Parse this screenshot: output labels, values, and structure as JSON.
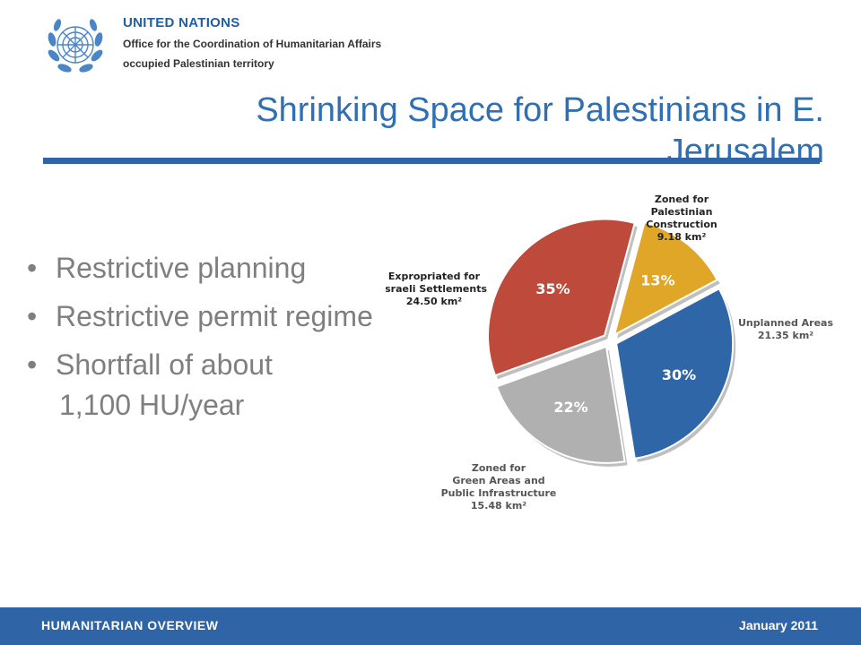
{
  "header": {
    "org_name": "UNITED NATIONS",
    "office": "Office for the Coordination of Humanitarian Affairs",
    "territory": "occupied Palestinian territory"
  },
  "slide": {
    "title": "Shrinking Space for Palestinians in E. Jerusalem",
    "bullets": [
      "Restrictive planning",
      "Restrictive permit regime",
      "Shortfall of about"
    ],
    "bullet_continuation": "1,100 HU/year"
  },
  "chart_data": {
    "type": "pie",
    "slices": [
      {
        "label_lines": [
          "Zoned for",
          "Palestinian",
          "Construction",
          "9.18 km²"
        ],
        "percent_label": "13%",
        "value": 9.18,
        "color": "#e0a628"
      },
      {
        "label_lines": [
          "Unplanned Areas",
          "21.35 km²"
        ],
        "percent_label": "30%",
        "value": 21.35,
        "color": "#2e66a8"
      },
      {
        "label_lines": [
          "Zoned for",
          "Green Areas and",
          "Public Infrastructure",
          "15.48 km²"
        ],
        "percent_label": "22%",
        "value": 15.48,
        "color": "#b0b0b0"
      },
      {
        "label_lines": [
          "Expropriated for",
          "Israeli Settlements",
          "24.50 km²"
        ],
        "percent_label": "35%",
        "value": 24.5,
        "color": "#bd4a3a"
      }
    ]
  },
  "footer": {
    "left": "HUMANITARIAN OVERVIEW",
    "right": "January 2011"
  }
}
